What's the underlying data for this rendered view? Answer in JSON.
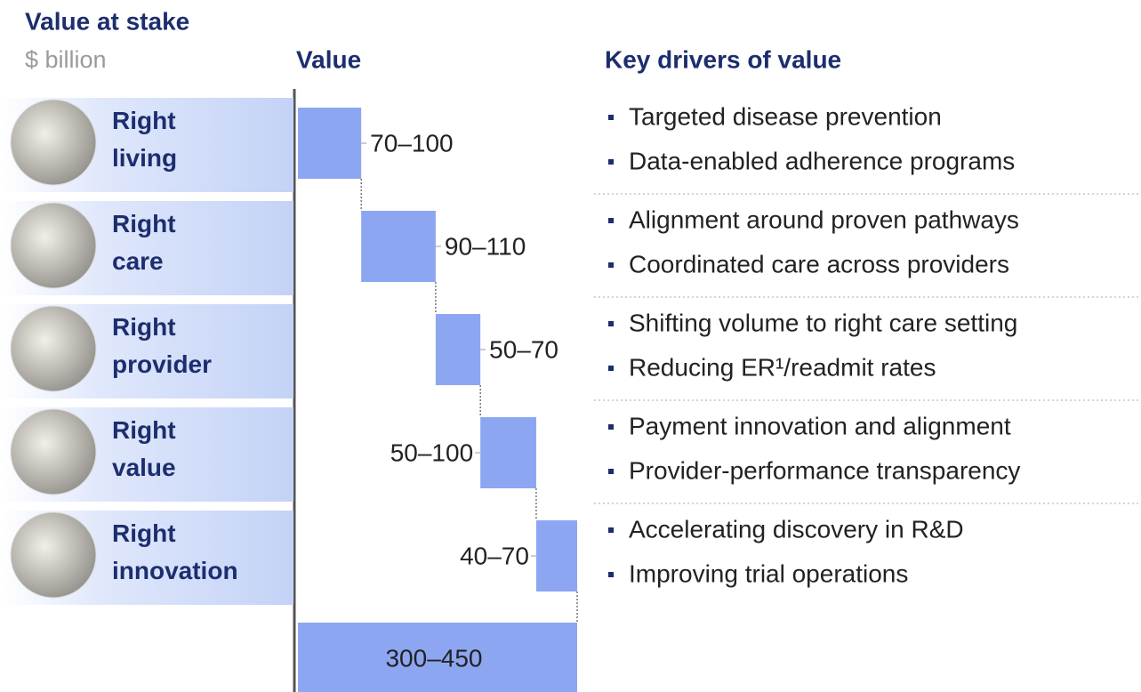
{
  "chart_data": {
    "type": "waterfall",
    "title": "Value at stake",
    "subtitle": "$ billion",
    "value_header": "Value",
    "drivers_header": "Key drivers of value",
    "color": "#8da6f2",
    "categories": [
      "Right living",
      "Right care",
      "Right provider",
      "Right value",
      "Right innovation"
    ],
    "ranges": [
      [
        70,
        100
      ],
      [
        90,
        110
      ],
      [
        50,
        70
      ],
      [
        50,
        100
      ],
      [
        40,
        70
      ]
    ],
    "value_labels": [
      "70–100",
      "90–110",
      "50–70",
      "50–100",
      "40–70"
    ],
    "total": [
      300,
      450
    ],
    "total_label": "300–450",
    "drivers": [
      [
        "Targeted disease prevention",
        "Data-enabled adherence programs"
      ],
      [
        "Alignment around proven pathways",
        "Coordinated care across providers"
      ],
      [
        "Shifting volume to right care setting",
        "Reducing ER¹/readmit rates"
      ],
      [
        "Payment innovation and alignment",
        "Provider-performance transparency"
      ],
      [
        "Accelerating discovery in R&D",
        "Improving trial operations"
      ]
    ]
  }
}
